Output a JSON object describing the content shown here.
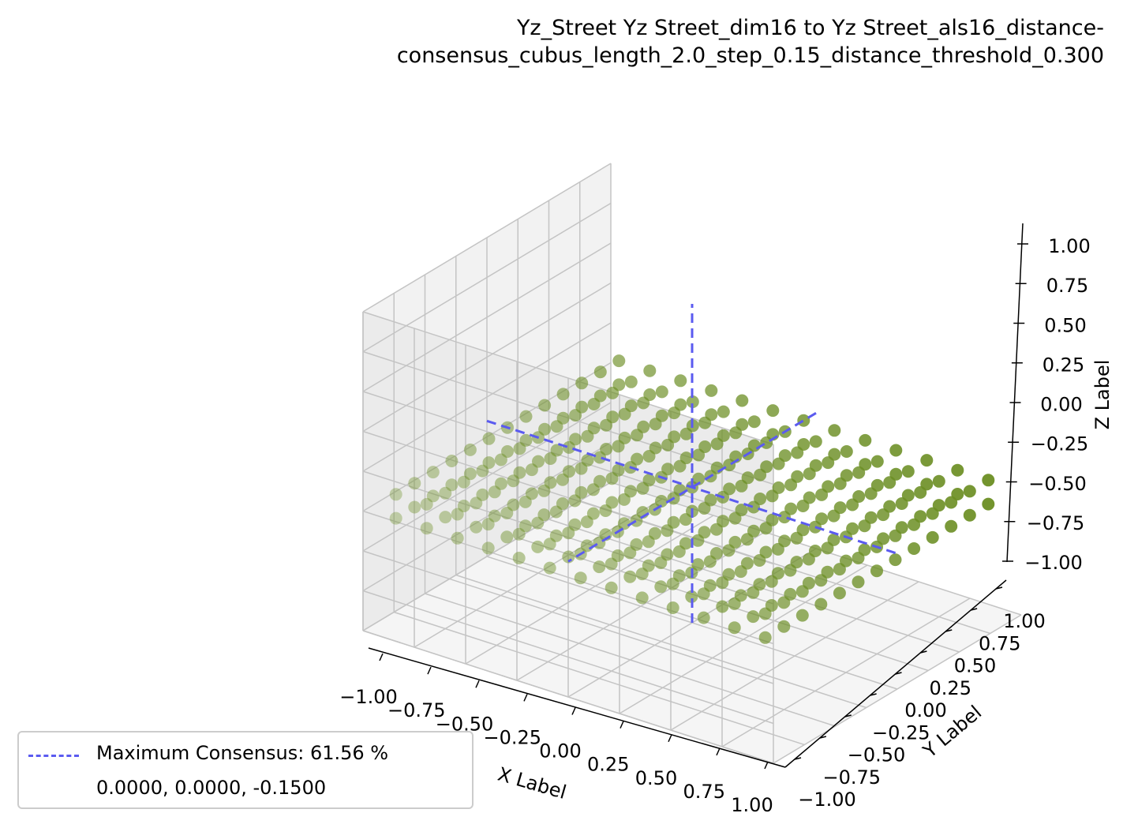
{
  "title_lines": [
    "Yz_Street Yz Street_dim16 to Yz Street_als16_distance-",
    "consensus_cubus_length_2.0_step_0.15_distance_threshold_0.300"
  ],
  "chart_data": {
    "type": "scatter",
    "projection": "3d",
    "title": "Yz_Street Yz Street_dim16 to Yz Street_als16_distance-consensus_cubus_length_2.0_step_0.15_distance_threshold_0.300",
    "xlabel": "X Label",
    "ylabel": "Y Label",
    "zlabel": "Z Label",
    "xlim": [
      -1.0,
      1.0
    ],
    "ylim": [
      -1.0,
      1.0
    ],
    "zlim": [
      -1.0,
      1.0
    ],
    "x_ticks": [
      "−1.00",
      "−0.75",
      "−0.50",
      "−0.25",
      "0.00",
      "0.25",
      "0.50",
      "0.75",
      "1.00"
    ],
    "y_ticks": [
      "−1.00",
      "−0.75",
      "−0.50",
      "−0.25",
      "0.00",
      "0.25",
      "0.50",
      "0.75",
      "1.00"
    ],
    "z_ticks": [
      "−1.00",
      "−0.75",
      "−0.50",
      "−0.25",
      "0.00",
      "0.25",
      "0.50",
      "0.75",
      "1.00"
    ],
    "grid": true,
    "points": {
      "x_values": [
        -0.9,
        -0.75,
        -0.6,
        -0.45,
        -0.3,
        -0.15,
        0.0,
        0.15,
        0.3,
        0.45,
        0.6,
        0.75,
        0.9
      ],
      "y_values": [
        -0.9,
        -0.75,
        -0.6,
        -0.45,
        -0.3,
        -0.15,
        0.0,
        0.15,
        0.3,
        0.45,
        0.6,
        0.75,
        0.9
      ],
      "z_values": [
        -0.3,
        -0.15
      ],
      "color": "#6b8e23"
    },
    "series": [
      {
        "name": "Maximum Consensus: 61.56 %",
        "type": "dashed-lines",
        "color": "#5b5bf0",
        "center": [
          0.0,
          0.0,
          -0.15
        ]
      }
    ],
    "legend": {
      "position": "bottom-left",
      "entries": [
        "Maximum Consensus: 61.56 %",
        "0.0000, 0.0000, -0.1500"
      ]
    }
  }
}
